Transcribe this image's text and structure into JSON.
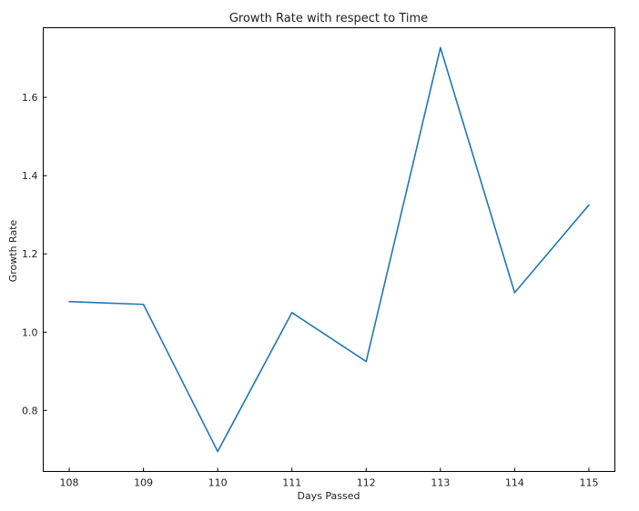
{
  "chart_data": {
    "type": "line",
    "title": "Growth Rate with respect to Time",
    "xlabel": "Days Passed",
    "ylabel": "Growth Rate",
    "x": [
      108,
      109,
      110,
      111,
      112,
      113,
      114,
      115
    ],
    "x_tick_labels": [
      "108",
      "109",
      "110",
      "111",
      "112",
      "113",
      "114",
      "115"
    ],
    "y_ticks": [
      0.8,
      1.0,
      1.2,
      1.4,
      1.6
    ],
    "y_tick_labels": [
      "0.8",
      "1.0",
      "1.2",
      "1.4",
      "1.6"
    ],
    "series": [
      {
        "values": [
          1.078,
          1.071,
          0.695,
          1.05,
          0.925,
          1.727,
          1.101,
          1.325
        ],
        "color": "#1f77b4"
      }
    ],
    "xlim": [
      107.65,
      115.35
    ],
    "ylim": [
      0.644,
      1.778
    ],
    "grid": false,
    "legend": false
  }
}
